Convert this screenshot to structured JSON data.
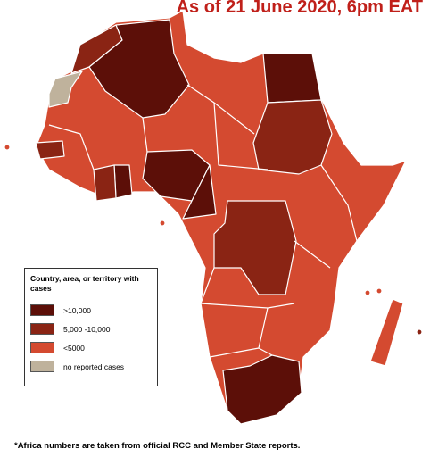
{
  "header": {
    "title": "As of 21 June 2020, 6pm EAT"
  },
  "legend": {
    "title": "Country, area, or territory with cases",
    "items": [
      {
        "label": ">10,000",
        "color": "#5c0f08"
      },
      {
        "label": "5,000 -10,000",
        "color": "#8a2414"
      },
      {
        "label": "<5000",
        "color": "#d44a30"
      },
      {
        "label": "no reported cases",
        "color": "#bfb29c"
      }
    ]
  },
  "footnote": "*Africa numbers are taken from official RCC and Member State reports."
}
